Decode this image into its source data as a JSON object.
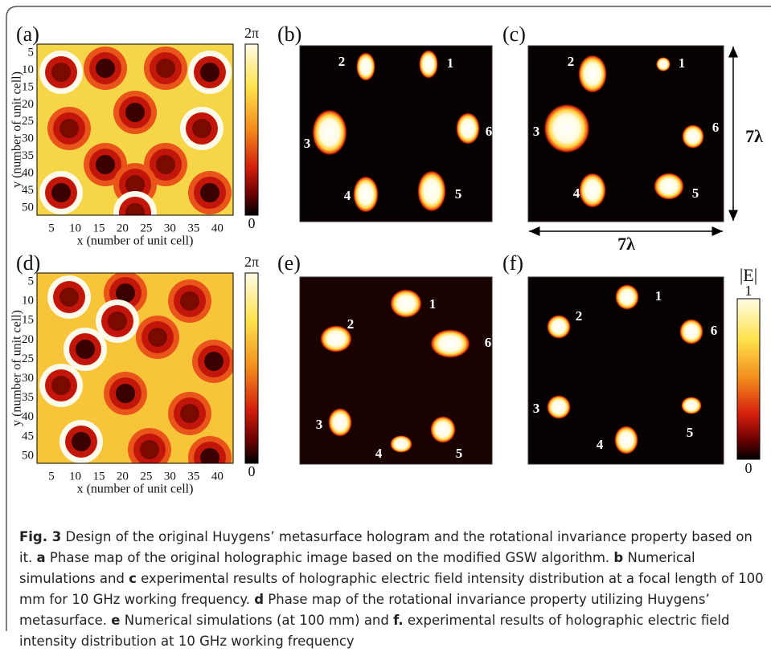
{
  "figure": {
    "panels": [
      {
        "label": "(a)",
        "colorbar": {
          "max": "2π",
          "min": "0"
        },
        "yticks": [
          5,
          10,
          15,
          20,
          25,
          30,
          35,
          40,
          45,
          50
        ],
        "xticks": [
          5,
          10,
          15,
          20,
          25,
          30,
          35,
          40
        ],
        "ylabel": "y (number of unit cell)",
        "xlabel": "x (number of unit cell)"
      },
      {
        "label": "(b)",
        "spots": [
          "1",
          "2",
          "3",
          "4",
          "5",
          "6"
        ]
      },
      {
        "label": "(c)",
        "spots": [
          "1",
          "2",
          "3",
          "4",
          "5",
          "6"
        ]
      },
      {
        "label": "(d)",
        "colorbar": {
          "max": "2π",
          "min": "0"
        },
        "yticks": [
          5,
          10,
          15,
          20,
          25,
          30,
          35,
          40,
          45,
          50
        ],
        "xticks": [
          5,
          10,
          15,
          20,
          25,
          30,
          35,
          40
        ],
        "ylabel": "y (number of unit cell)",
        "xlabel": "x (number of unit cell)"
      },
      {
        "label": "(e)",
        "spots": [
          "1",
          "2",
          "3",
          "4",
          "5",
          "6"
        ]
      },
      {
        "label": "(f)",
        "spots": [
          "1",
          "2",
          "3",
          "4",
          "5",
          "6"
        ]
      }
    ],
    "scale": {
      "vertical": "7λ",
      "horizontal": "7λ"
    },
    "field_colorbar": {
      "title": "|E|",
      "max": "1",
      "min": "0"
    }
  },
  "caption": [
    {
      "text": "Fig. 3",
      "bold": true
    },
    {
      "text": " Design of the original Huygens’ metasurface hologram and the rotational invariance property based on it. ",
      "bold": false
    },
    {
      "text": "a",
      "bold": true
    },
    {
      "text": " Phase map of the original holographic image based on the modified GSW algorithm. ",
      "bold": false
    },
    {
      "text": "b",
      "bold": true
    },
    {
      "text": " Numerical simulations and ",
      "bold": false
    },
    {
      "text": "c",
      "bold": true
    },
    {
      "text": " experimental results of holographic electric field intensity distribution at a focal length of 100 mm for 10 GHz working frequency. ",
      "bold": false
    },
    {
      "text": "d",
      "bold": true
    },
    {
      "text": " Phase map of the rotational invariance property utilizing Huygens’ metasurface. ",
      "bold": false
    },
    {
      "text": "e",
      "bold": true
    },
    {
      "text": " Numerical simulations (at 100 mm) and ",
      "bold": false
    },
    {
      "text": "f.",
      "bold": true
    },
    {
      "text": " experimental results of holographic electric field intensity distribution at 10 GHz working frequency",
      "bold": false
    }
  ]
}
